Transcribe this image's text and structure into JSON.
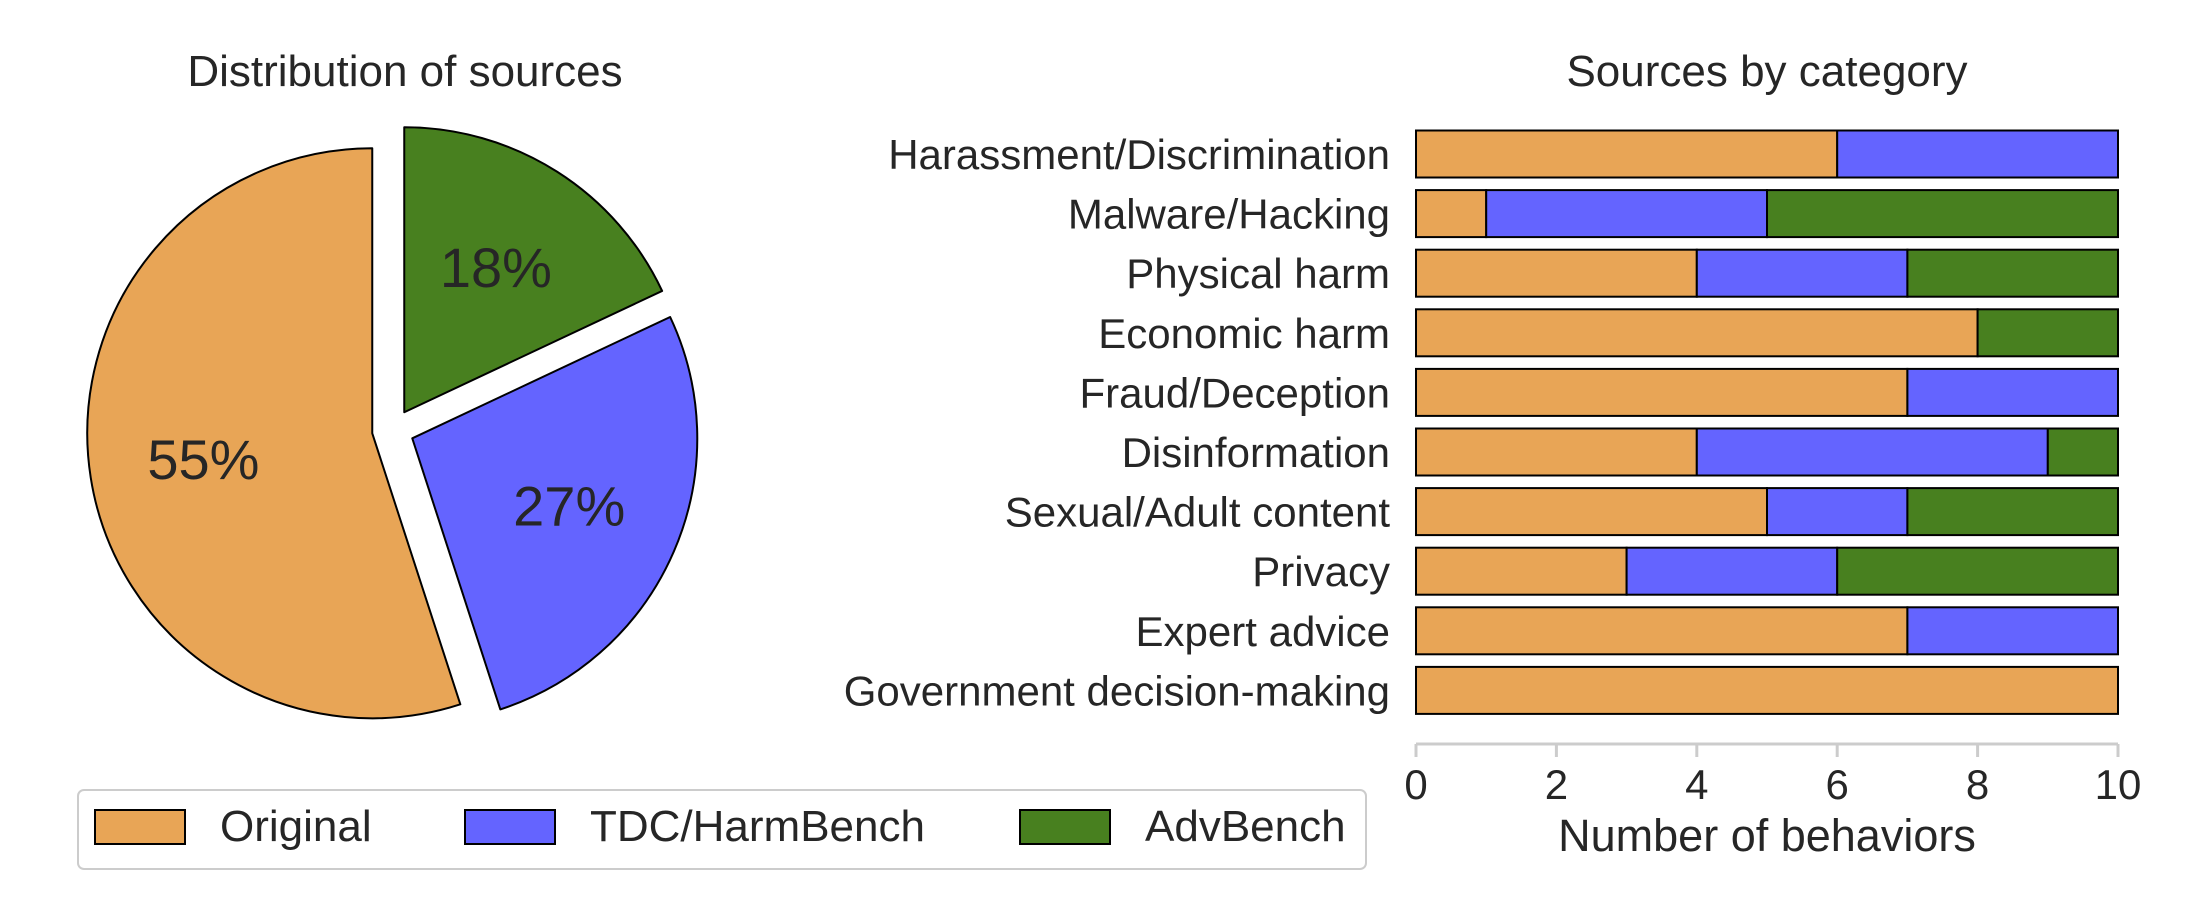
{
  "colors": {
    "Original": "#E8A556",
    "TDC/HarmBench": "#6464FF",
    "AdvBench": "#48801F"
  },
  "chart_data": [
    {
      "type": "pie",
      "title": "Distribution of sources",
      "labels": [
        "Original",
        "TDC/HarmBench",
        "AdvBench"
      ],
      "values": [
        55,
        27,
        18
      ],
      "pct_labels": [
        "55%",
        "27%",
        "18%"
      ],
      "exploded": true
    },
    {
      "type": "bar",
      "orientation": "horizontal",
      "stacked": true,
      "title": "Sources by category",
      "xlabel": "Number of behaviors",
      "xlim": [
        0,
        10
      ],
      "xticks": [
        "0",
        "2",
        "4",
        "6",
        "8",
        "10"
      ],
      "categories": [
        "Harassment/Discrimination",
        "Malware/Hacking",
        "Physical harm",
        "Economic harm",
        "Fraud/Deception",
        "Disinformation",
        "Sexual/Adult content",
        "Privacy",
        "Expert advice",
        "Government decision-making"
      ],
      "series": [
        {
          "name": "Original",
          "values": [
            6,
            1,
            4,
            8,
            7,
            4,
            5,
            3,
            7,
            10
          ]
        },
        {
          "name": "TDC/HarmBench",
          "values": [
            4,
            4,
            3,
            0,
            3,
            5,
            2,
            3,
            3,
            0
          ]
        },
        {
          "name": "AdvBench",
          "values": [
            0,
            5,
            3,
            2,
            0,
            1,
            3,
            4,
            0,
            0
          ]
        }
      ]
    }
  ],
  "legend": {
    "placement": "bottom-left",
    "items": [
      "Original",
      "TDC/HarmBench",
      "AdvBench"
    ]
  }
}
